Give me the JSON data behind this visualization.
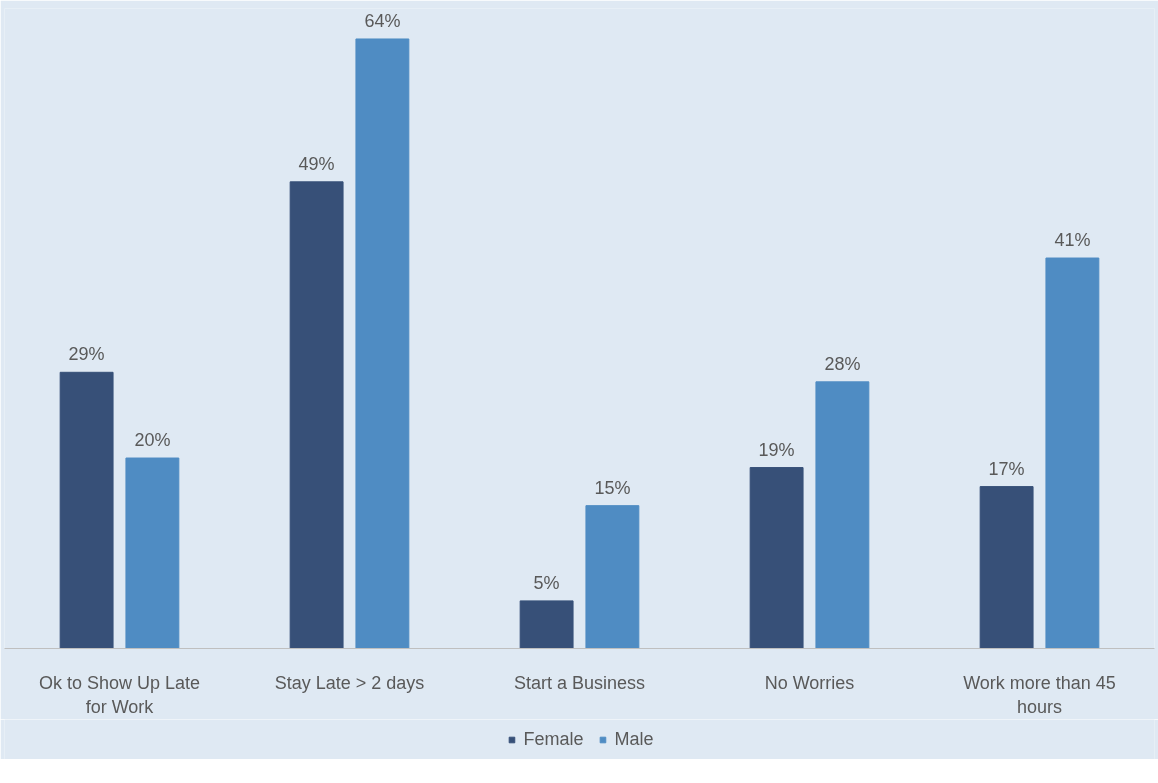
{
  "chart_data": {
    "type": "bar",
    "categories": [
      "Ok to Show Up Late for Work",
      "Stay Late > 2 days",
      "Start a Business",
      "No Worries",
      "Work more than 45 hours"
    ],
    "series": [
      {
        "name": "Female",
        "color": "#375078",
        "values": [
          29,
          49,
          5,
          19,
          17
        ],
        "value_labels": [
          "29%",
          "49%",
          "5%",
          "19%",
          "17%"
        ]
      },
      {
        "name": "Male",
        "color": "#4f8cc3",
        "values": [
          20,
          64,
          15,
          28,
          41
        ],
        "value_labels": [
          "20%",
          "64%",
          "15%",
          "28%",
          "41%"
        ]
      }
    ],
    "legend": "bottom",
    "grid": false
  }
}
